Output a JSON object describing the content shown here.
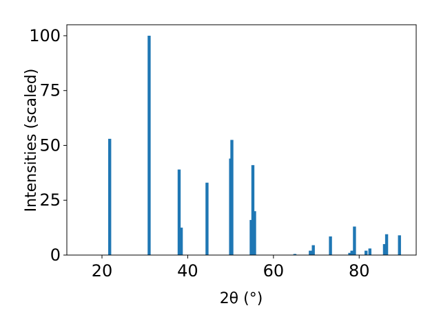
{
  "chart_data": {
    "type": "bar",
    "x_label": "2θ (°)",
    "y_label": "Intensities (scaled)",
    "x": [
      21.8,
      31.0,
      38.0,
      38.5,
      44.5,
      50.0,
      50.3,
      54.8,
      55.2,
      55.6,
      65.0,
      68.6,
      69.3,
      73.3,
      77.8,
      78.3,
      78.9,
      81.6,
      82.5,
      85.9,
      86.4,
      89.4
    ],
    "values": [
      53,
      100,
      39,
      12.5,
      33,
      44,
      52.5,
      16,
      41,
      20,
      0.5,
      2,
      4.5,
      8.5,
      1,
      2,
      13,
      2,
      3,
      5,
      9.5,
      9
    ],
    "color": "#1f77b4",
    "xlim": [
      11.8,
      93.3
    ],
    "xticks": [
      20,
      40,
      60,
      80
    ],
    "ylim": [
      0,
      105
    ],
    "yticks": [
      0,
      25,
      50,
      75,
      100
    ],
    "grid": false
  }
}
